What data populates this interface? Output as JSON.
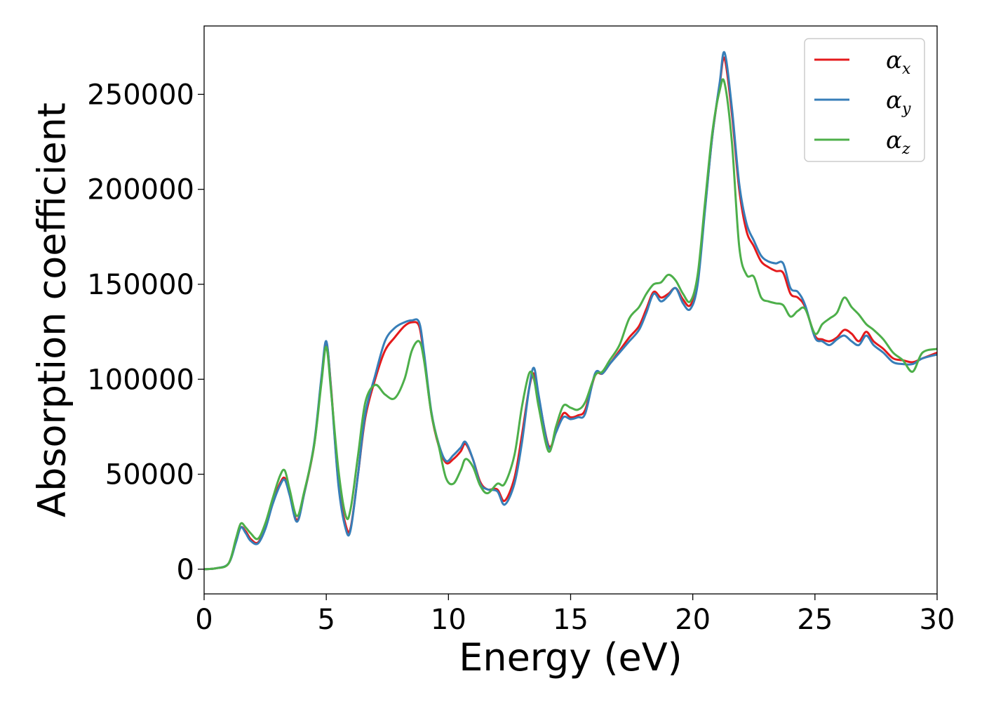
{
  "chart_data": {
    "type": "line",
    "xlabel": "Energy (eV)",
    "ylabel": "Absorption coefficient",
    "xlim": [
      0,
      30
    ],
    "ylim": [
      -13000,
      286000
    ],
    "xticks": [
      0,
      5,
      10,
      15,
      20,
      25,
      30
    ],
    "yticks": [
      0,
      50000,
      100000,
      150000,
      200000,
      250000
    ],
    "grid": false,
    "legend_position": "top-right",
    "series": [
      {
        "name": "α_x",
        "symbol": "α",
        "subscript": "x",
        "color": "#e41a1c",
        "x": [
          0,
          0.5,
          1.0,
          1.3,
          1.5,
          1.7,
          1.9,
          2.2,
          2.5,
          2.8,
          3.1,
          3.3,
          3.5,
          3.8,
          4.1,
          4.5,
          4.8,
          5.0,
          5.2,
          5.5,
          5.8,
          6.0,
          6.3,
          6.6,
          7.0,
          7.4,
          7.8,
          8.2,
          8.5,
          8.8,
          9.0,
          9.3,
          9.6,
          9.9,
          10.2,
          10.5,
          10.7,
          11.0,
          11.3,
          11.6,
          12.0,
          12.3,
          12.7,
          13.0,
          13.3,
          13.5,
          13.7,
          14.1,
          14.4,
          14.7,
          15.0,
          15.3,
          15.6,
          16.0,
          16.3,
          16.6,
          17.0,
          17.4,
          17.8,
          18.1,
          18.4,
          18.7,
          19.0,
          19.3,
          19.6,
          19.9,
          20.2,
          20.5,
          20.8,
          21.1,
          21.3,
          21.6,
          21.9,
          22.2,
          22.5,
          22.8,
          23.1,
          23.4,
          23.7,
          24.0,
          24.3,
          24.6,
          25.0,
          25.3,
          25.6,
          25.9,
          26.2,
          26.5,
          26.8,
          27.1,
          27.4,
          27.8,
          28.2,
          28.6,
          29.0,
          29.4,
          30.0
        ],
        "y": [
          0,
          500,
          3000,
          15000,
          22000,
          20000,
          16000,
          14000,
          22000,
          35000,
          45000,
          48000,
          40000,
          26000,
          40000,
          65000,
          100000,
          119000,
          95000,
          45000,
          23000,
          22000,
          50000,
          80000,
          100000,
          115000,
          122000,
          128000,
          130000,
          128000,
          112000,
          82000,
          65000,
          56000,
          58000,
          62000,
          66000,
          58000,
          46000,
          42000,
          42000,
          36000,
          48000,
          70000,
          95000,
          103000,
          90000,
          65000,
          72000,
          82000,
          80000,
          81000,
          84000,
          102000,
          103000,
          108000,
          115000,
          122000,
          128000,
          137000,
          146000,
          143000,
          145000,
          148000,
          142000,
          139000,
          152000,
          190000,
          228000,
          255000,
          269000,
          240000,
          200000,
          178000,
          170000,
          162000,
          159000,
          157000,
          156000,
          145000,
          143000,
          138000,
          123000,
          121000,
          120000,
          122000,
          126000,
          124000,
          120000,
          125000,
          120000,
          116000,
          111000,
          110000,
          109000,
          111000,
          114000
        ]
      },
      {
        "name": "α_y",
        "symbol": "α",
        "subscript": "y",
        "color": "#377eb8",
        "x": [
          0,
          0.5,
          1.0,
          1.3,
          1.5,
          1.7,
          1.9,
          2.2,
          2.5,
          2.8,
          3.1,
          3.3,
          3.5,
          3.8,
          4.1,
          4.5,
          4.8,
          5.0,
          5.2,
          5.5,
          5.8,
          6.0,
          6.3,
          6.6,
          7.0,
          7.4,
          7.8,
          8.2,
          8.5,
          8.8,
          9.0,
          9.3,
          9.6,
          9.9,
          10.2,
          10.5,
          10.7,
          11.0,
          11.3,
          11.6,
          12.0,
          12.3,
          12.7,
          13.0,
          13.3,
          13.5,
          13.7,
          14.1,
          14.4,
          14.7,
          15.0,
          15.3,
          15.6,
          16.0,
          16.3,
          16.6,
          17.0,
          17.4,
          17.8,
          18.1,
          18.4,
          18.7,
          19.0,
          19.3,
          19.6,
          19.9,
          20.2,
          20.5,
          20.8,
          21.1,
          21.3,
          21.6,
          21.9,
          22.2,
          22.5,
          22.8,
          23.1,
          23.4,
          23.7,
          24.0,
          24.3,
          24.6,
          25.0,
          25.3,
          25.6,
          25.9,
          26.2,
          26.5,
          26.8,
          27.1,
          27.4,
          27.8,
          28.2,
          28.6,
          29.0,
          29.4,
          30.0
        ],
        "y": [
          0,
          500,
          3000,
          14000,
          22000,
          19000,
          15000,
          13500,
          21000,
          34000,
          44000,
          47000,
          39000,
          25000,
          40000,
          66000,
          101000,
          120000,
          94000,
          44000,
          21000,
          21000,
          50000,
          82000,
          102000,
          120000,
          127000,
          130000,
          131000,
          130000,
          114000,
          83000,
          66000,
          57000,
          60000,
          64000,
          67000,
          58000,
          45000,
          42000,
          41000,
          34000,
          45000,
          66000,
          95000,
          106000,
          91000,
          64000,
          72000,
          80000,
          79000,
          80000,
          82000,
          103000,
          103000,
          108000,
          114000,
          120000,
          126000,
          135000,
          145000,
          141000,
          144000,
          148000,
          140000,
          137000,
          150000,
          189000,
          228000,
          256000,
          272000,
          243000,
          203000,
          182000,
          173000,
          165000,
          162000,
          161000,
          161000,
          148000,
          146000,
          139000,
          122000,
          120000,
          118000,
          121000,
          123000,
          120000,
          118000,
          123000,
          118000,
          114000,
          109000,
          108000,
          108000,
          111000,
          113000
        ]
      },
      {
        "name": "α_z",
        "symbol": "α",
        "subscript": "z",
        "color": "#4daf4a",
        "x": [
          0,
          0.5,
          1.0,
          1.3,
          1.5,
          1.7,
          1.9,
          2.2,
          2.5,
          2.8,
          3.1,
          3.3,
          3.5,
          3.8,
          4.1,
          4.5,
          4.8,
          5.0,
          5.2,
          5.5,
          5.8,
          6.0,
          6.3,
          6.6,
          7.0,
          7.4,
          7.8,
          8.2,
          8.5,
          8.8,
          9.0,
          9.3,
          9.6,
          9.9,
          10.2,
          10.5,
          10.7,
          11.0,
          11.3,
          11.6,
          12.0,
          12.3,
          12.7,
          13.0,
          13.3,
          13.5,
          13.7,
          14.1,
          14.4,
          14.7,
          15.0,
          15.3,
          15.6,
          16.0,
          16.3,
          16.6,
          17.0,
          17.4,
          17.8,
          18.1,
          18.4,
          18.7,
          19.0,
          19.3,
          19.6,
          19.9,
          20.2,
          20.5,
          20.8,
          21.1,
          21.3,
          21.6,
          21.9,
          22.2,
          22.5,
          22.8,
          23.1,
          23.4,
          23.7,
          24.0,
          24.3,
          24.6,
          25.0,
          25.3,
          25.6,
          25.9,
          26.2,
          26.5,
          26.8,
          27.1,
          27.4,
          27.8,
          28.2,
          28.6,
          29.0,
          29.4,
          30.0
        ],
        "y": [
          0,
          500,
          3000,
          16000,
          24000,
          22000,
          19000,
          16000,
          24000,
          37000,
          49000,
          52000,
          42000,
          28000,
          41000,
          65000,
          98000,
          117000,
          93000,
          52000,
          28000,
          32000,
          60000,
          88000,
          97000,
          92000,
          90000,
          100000,
          115000,
          120000,
          110000,
          82000,
          65000,
          48000,
          45000,
          52000,
          58000,
          54000,
          44000,
          40000,
          45000,
          45000,
          60000,
          85000,
          103000,
          100000,
          85000,
          62000,
          75000,
          86000,
          85000,
          84000,
          88000,
          102000,
          104000,
          110000,
          118000,
          132000,
          138000,
          145000,
          150000,
          151000,
          155000,
          152000,
          145000,
          141000,
          155000,
          193000,
          230000,
          252000,
          256000,
          225000,
          170000,
          155000,
          154000,
          143000,
          141000,
          140000,
          139000,
          133000,
          136000,
          137000,
          124000,
          129000,
          132000,
          135000,
          143000,
          138000,
          134000,
          129000,
          126000,
          121000,
          114000,
          110000,
          104000,
          114000,
          116000
        ]
      }
    ]
  }
}
